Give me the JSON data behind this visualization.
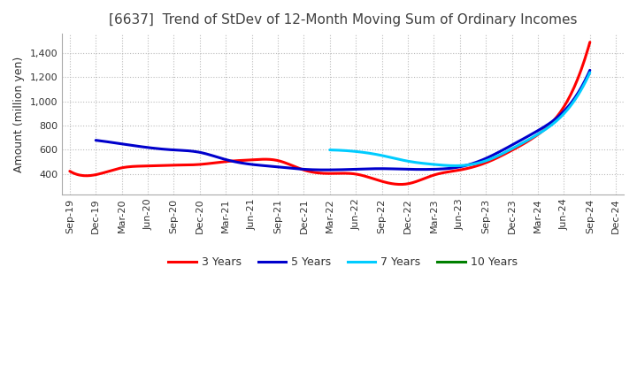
{
  "title": "[6637]  Trend of StDev of 12-Month Moving Sum of Ordinary Incomes",
  "ylabel": "Amount (million yen)",
  "background_color": "#ffffff",
  "grid_color": "#aaaaaa",
  "ylim": [
    230,
    1560
  ],
  "yticks": [
    400,
    600,
    800,
    1000,
    1200,
    1400
  ],
  "x_labels": [
    "Sep-19",
    "Dec-19",
    "Mar-20",
    "Jun-20",
    "Sep-20",
    "Dec-20",
    "Mar-21",
    "Jun-21",
    "Sep-21",
    "Dec-21",
    "Mar-22",
    "Jun-22",
    "Sep-22",
    "Dec-22",
    "Mar-23",
    "Jun-23",
    "Sep-23",
    "Dec-23",
    "Mar-24",
    "Jun-24",
    "Sep-24",
    "Dec-24"
  ],
  "series": {
    "3 Years": {
      "color": "#ff0000",
      "data": [
        422,
        393,
        450,
        465,
        472,
        478,
        502,
        516,
        510,
        432,
        403,
        398,
        338,
        318,
        390,
        432,
        492,
        595,
        725,
        955,
        1490,
        null
      ]
    },
    "5 Years": {
      "color": "#0000cc",
      "data": [
        null,
        678,
        648,
        618,
        598,
        578,
        518,
        478,
        458,
        438,
        433,
        438,
        443,
        438,
        438,
        458,
        528,
        638,
        758,
        918,
        1258,
        null
      ]
    },
    "7 Years": {
      "color": "#00ccff",
      "data": [
        null,
        null,
        null,
        null,
        null,
        null,
        null,
        null,
        null,
        null,
        598,
        585,
        552,
        505,
        478,
        468,
        508,
        608,
        728,
        898,
        1238,
        null
      ]
    },
    "10 Years": {
      "color": "#008000",
      "data": [
        null,
        null,
        null,
        null,
        null,
        null,
        null,
        null,
        null,
        null,
        null,
        null,
        null,
        null,
        null,
        null,
        null,
        null,
        null,
        null,
        null,
        null
      ]
    }
  },
  "legend_order": [
    "3 Years",
    "5 Years",
    "7 Years",
    "10 Years"
  ],
  "title_color": "#404040",
  "title_fontsize": 11,
  "ylabel_fontsize": 9,
  "tick_fontsize": 8,
  "legend_fontsize": 9,
  "linewidth": 2.2
}
